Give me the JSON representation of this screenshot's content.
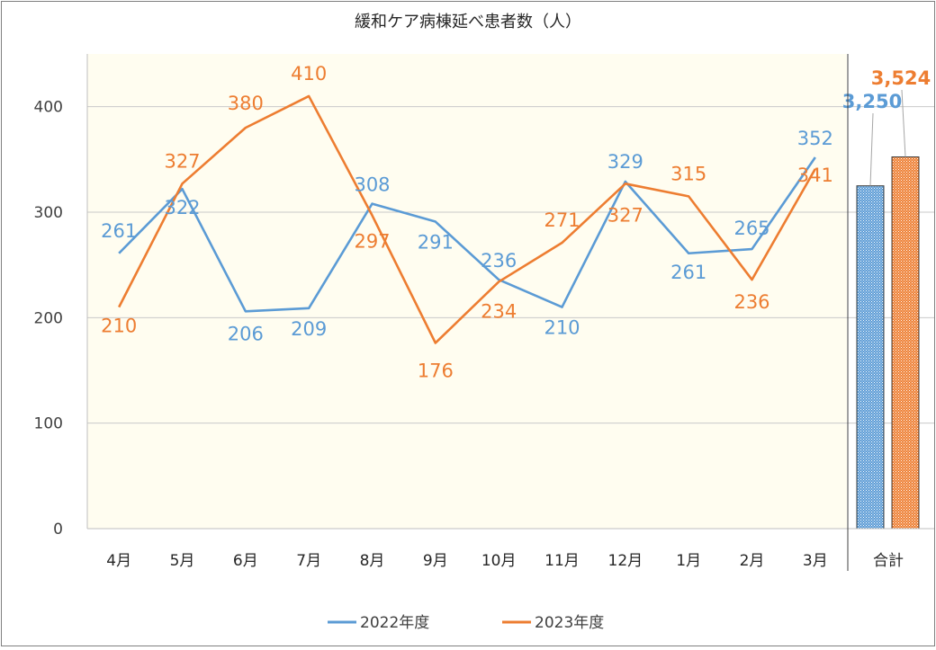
{
  "chart_data": {
    "type": "line",
    "title": "緩和ケア病棟延べ患者数（人）",
    "xlabel": "",
    "ylabel": "",
    "categories": [
      "4月",
      "5月",
      "6月",
      "7月",
      "8月",
      "9月",
      "10月",
      "11月",
      "12月",
      "1月",
      "2月",
      "3月"
    ],
    "yticks": [
      "0",
      "100",
      "200",
      "300",
      "400"
    ],
    "ylim": [
      0,
      450
    ],
    "grid": true,
    "legend_position": "bottom",
    "series": [
      {
        "name": "2022年度",
        "color": "#5b9bd5",
        "values": [
          261,
          322,
          206,
          209,
          308,
          291,
          236,
          210,
          329,
          261,
          265,
          352
        ],
        "labels": [
          "261",
          "322",
          "206",
          "209",
          "308",
          "291",
          "236",
          "210",
          "329",
          "261",
          "265",
          "352"
        ]
      },
      {
        "name": "2023年度",
        "color": "#ed7d31",
        "values": [
          210,
          327,
          380,
          410,
          297,
          176,
          234,
          271,
          327,
          315,
          236,
          341
        ],
        "labels": [
          "210",
          "327",
          "380",
          "410",
          "297",
          "176",
          "234",
          "271",
          "327",
          "315",
          "236",
          "341"
        ]
      }
    ],
    "total": {
      "category": "合計",
      "bar_scale_divisor": 10,
      "bars": [
        {
          "series": "2022年度",
          "value": 3250,
          "label": "3,250",
          "color": "#5b9bd5"
        },
        {
          "series": "2023年度",
          "value": 3524,
          "label": "3,524",
          "color": "#ed7d31"
        }
      ]
    }
  }
}
